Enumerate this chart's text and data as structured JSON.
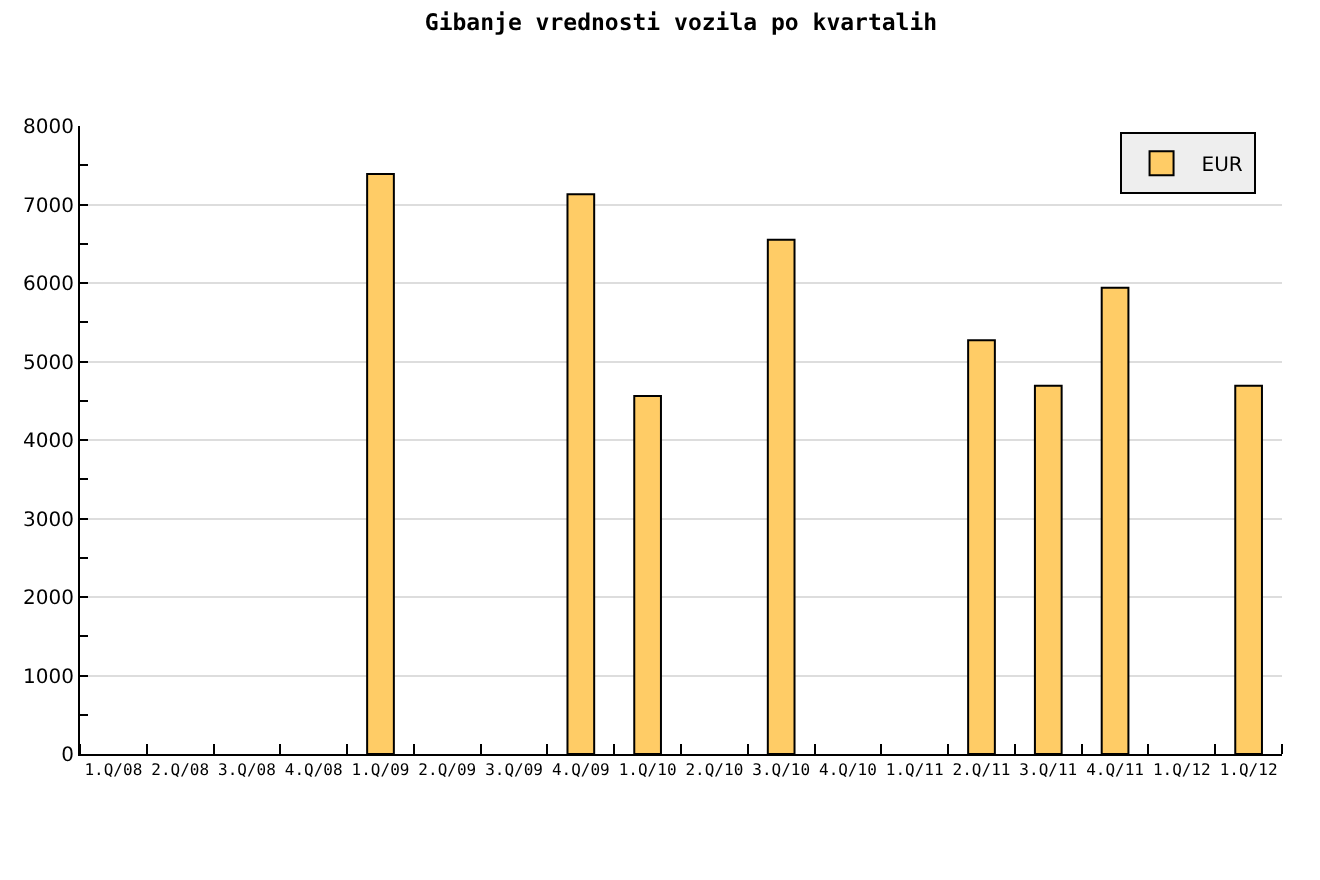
{
  "chart_data": {
    "type": "bar",
    "title": "Gibanje vrednosti vozila po kvartalih",
    "categories": [
      "1.Q/08",
      "2.Q/08",
      "3.Q/08",
      "4.Q/08",
      "1.Q/09",
      "2.Q/09",
      "3.Q/09",
      "4.Q/09",
      "1.Q/10",
      "2.Q/10",
      "3.Q/10",
      "4.Q/10",
      "1.Q/11",
      "2.Q/11",
      "3.Q/11",
      "4.Q/11",
      "1.Q/12",
      "1.Q/12"
    ],
    "series": [
      {
        "name": "EUR",
        "color": "#ffcc66",
        "values": [
          null,
          null,
          null,
          null,
          7390,
          null,
          null,
          7130,
          4560,
          null,
          6550,
          null,
          null,
          5270,
          4690,
          5940,
          null,
          4690
        ]
      }
    ],
    "ylim": [
      0,
      8000
    ],
    "yticks": [
      0,
      {
        "value": 500,
        "label": null
      },
      1000,
      {
        "value": 1500,
        "label": null
      },
      2000,
      {
        "value": 2500,
        "label": null
      },
      3000,
      {
        "value": 3500,
        "label": null
      },
      4000,
      {
        "value": 4500,
        "label": null
      },
      5000,
      {
        "value": 5500,
        "label": null
      },
      6000,
      {
        "value": 6500,
        "label": null
      },
      7000,
      {
        "value": 7500,
        "label": null
      },
      8000
    ],
    "grid": "y",
    "legend": "top right"
  }
}
